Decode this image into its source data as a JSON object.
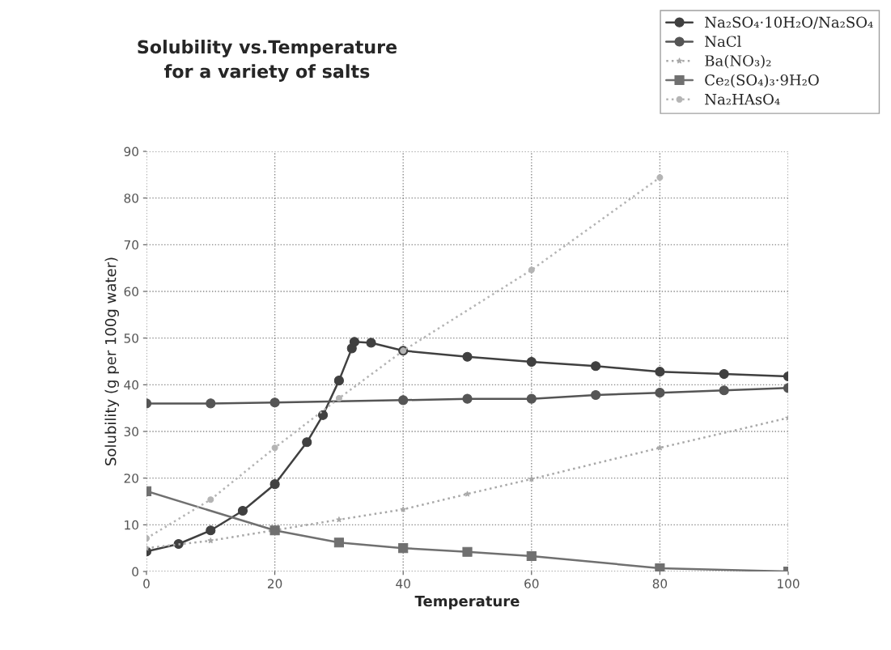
{
  "chart_data": {
    "type": "line",
    "title": "Solubility vs.Temperature\nfor a variety of salts",
    "xlabel": "Temperature",
    "ylabel": "Solubility (g per 100g water)",
    "xlim": [
      0,
      100
    ],
    "xticks": [
      0,
      20,
      40,
      60,
      80,
      100
    ],
    "ylim": [
      0,
      90
    ],
    "yticks": [
      0,
      10,
      20,
      30,
      40,
      50,
      60,
      70,
      80,
      90
    ],
    "grid": true,
    "legend": "top right",
    "series": [
      {
        "name": "Na₂SO₄·10H₂O/Na₂SO₄",
        "color": "#404040",
        "marker": "circle",
        "line_style": "solid",
        "x": [
          0,
          5,
          10,
          15,
          20,
          25,
          27.5,
          30,
          32,
          32.4,
          35,
          40,
          50,
          60,
          70,
          80,
          90,
          100
        ],
        "values": [
          4.3,
          5.9,
          8.8,
          13,
          18.7,
          27.7,
          33.5,
          40.9,
          47.8,
          49.2,
          49,
          47.3,
          46,
          44.9,
          44,
          42.8,
          42.3,
          41.8
        ]
      },
      {
        "name": "NaCl",
        "color": "#555555",
        "marker": "circle",
        "line_style": "solid",
        "x": [
          0,
          10,
          20,
          40,
          50,
          60,
          70,
          80,
          90,
          100
        ],
        "values": [
          36.0,
          36.0,
          36.2,
          36.7,
          37.0,
          37.0,
          37.8,
          38.3,
          38.8,
          39.3
        ]
      },
      {
        "name": "Ba(NO₃)₂",
        "color": "#a8a8a8",
        "marker": "star",
        "line_style": "dotted",
        "x": [
          0,
          10,
          20,
          30,
          40,
          50,
          60,
          80,
          100
        ],
        "values": [
          5.0,
          6.6,
          null,
          11.1,
          13.3,
          16.6,
          19.8,
          26.5,
          32.9
        ]
      },
      {
        "name": "Ce₂(SO₄)₃·9H₂O",
        "color": "#707070",
        "marker": "square",
        "line_style": "solid",
        "x": [
          0,
          20,
          30,
          40,
          50,
          60,
          80,
          100
        ],
        "values": [
          17.2,
          8.8,
          6.2,
          5.0,
          4.2,
          3.3,
          0.7,
          0
        ]
      },
      {
        "name": "Na₂HAsO₄",
        "color": "#b4b4b4",
        "marker": "circle",
        "line_style": "dotted",
        "x": [
          0,
          10,
          20,
          30,
          40,
          60,
          80
        ],
        "values": [
          7.1,
          15.4,
          26.5,
          37.1,
          47.3,
          64.6,
          84.4
        ]
      }
    ]
  }
}
